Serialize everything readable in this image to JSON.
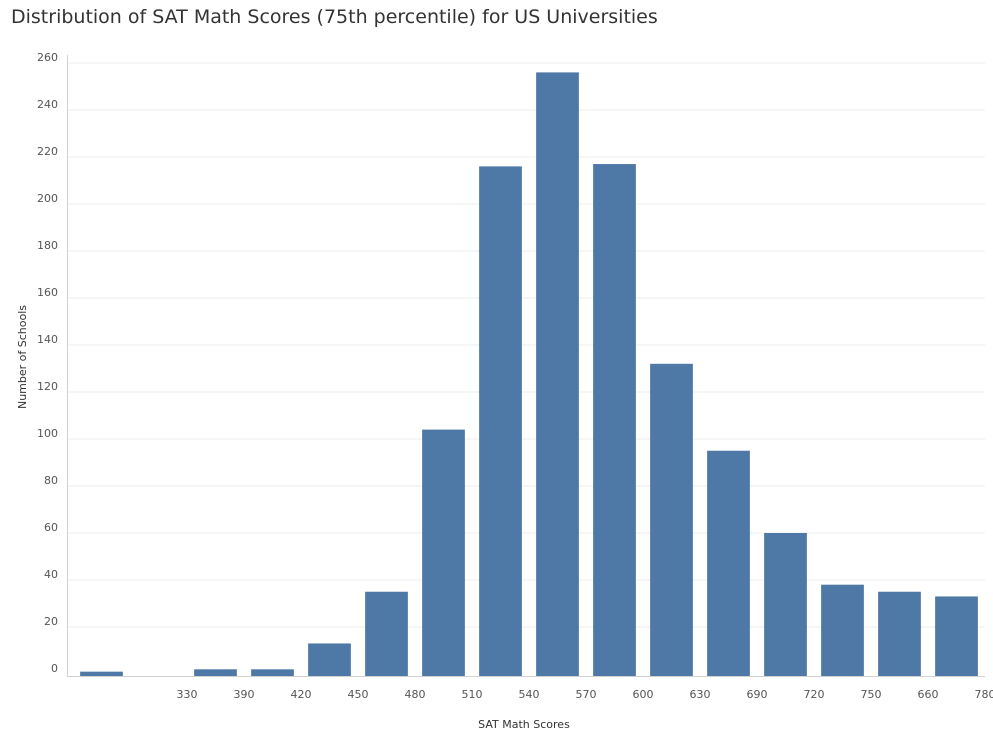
{
  "chart_data": {
    "type": "bar",
    "title": "Distribution of SAT Math Scores (75th percentile) for US Universities",
    "xlabel": "SAT Math Scores",
    "ylabel": "Number of Schools",
    "categories": [
      "",
      "330",
      "390",
      "420",
      "450",
      "480",
      "510",
      "540",
      "570",
      "600",
      "630",
      "690",
      "720",
      "750",
      "660",
      "780"
    ],
    "values": [
      1,
      0,
      2,
      2,
      13,
      35,
      104,
      216,
      256,
      217,
      132,
      95,
      60,
      38,
      35,
      33
    ],
    "ylim": [
      0,
      260
    ],
    "yticks": [
      0,
      20,
      40,
      60,
      80,
      100,
      120,
      140,
      160,
      180,
      200,
      220,
      240,
      260
    ],
    "grid": true,
    "legend": "none",
    "colors": {
      "bar": "#4e79a7",
      "grid": "#eeeeee",
      "axis": "#d0d0d0"
    }
  }
}
